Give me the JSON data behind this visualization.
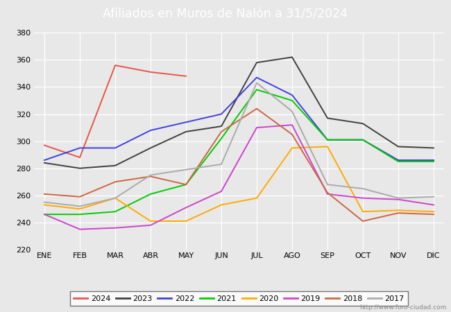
{
  "title": "Afiliados en Muros de Nalón a 31/5/2024",
  "background_color": "#e8e8e8",
  "plot_background": "#e8e8e8",
  "header_bg": "#4f81bd",
  "months": [
    "ENE",
    "FEB",
    "MAR",
    "ABR",
    "MAY",
    "JUN",
    "JUL",
    "AGO",
    "SEP",
    "OCT",
    "NOV",
    "DIC"
  ],
  "ylim": [
    220,
    380
  ],
  "yticks": [
    220,
    240,
    260,
    280,
    300,
    320,
    340,
    360,
    380
  ],
  "series": {
    "2024": {
      "color": "#e8534a",
      "data": [
        297,
        288,
        356,
        351,
        348,
        null,
        null,
        null,
        null,
        null,
        null,
        null
      ]
    },
    "2023": {
      "color": "#404040",
      "data": [
        284,
        280,
        282,
        295,
        307,
        311,
        358,
        362,
        317,
        313,
        296,
        295
      ]
    },
    "2022": {
      "color": "#4040dd",
      "data": [
        286,
        295,
        295,
        308,
        314,
        320,
        347,
        334,
        301,
        301,
        286,
        286
      ]
    },
    "2021": {
      "color": "#00cc00",
      "data": [
        246,
        246,
        248,
        261,
        268,
        302,
        338,
        330,
        301,
        301,
        285,
        285
      ]
    },
    "2020": {
      "color": "#ffaa00",
      "data": [
        253,
        250,
        258,
        241,
        241,
        253,
        258,
        295,
        296,
        248,
        249,
        248
      ]
    },
    "2019": {
      "color": "#cc44cc",
      "data": [
        246,
        235,
        236,
        238,
        251,
        263,
        310,
        312,
        261,
        258,
        257,
        253
      ]
    },
    "2018": {
      "color": "#cc6644",
      "data": [
        261,
        259,
        270,
        274,
        268,
        307,
        324,
        305,
        262,
        241,
        247,
        246
      ]
    },
    "2017": {
      "color": "#aaaaaa",
      "data": [
        255,
        252,
        258,
        275,
        279,
        283,
        343,
        322,
        268,
        265,
        258,
        259
      ]
    }
  },
  "legend_order": [
    "2024",
    "2023",
    "2022",
    "2021",
    "2020",
    "2019",
    "2018",
    "2017"
  ],
  "watermark": "http://www.foro-ciudad.com"
}
